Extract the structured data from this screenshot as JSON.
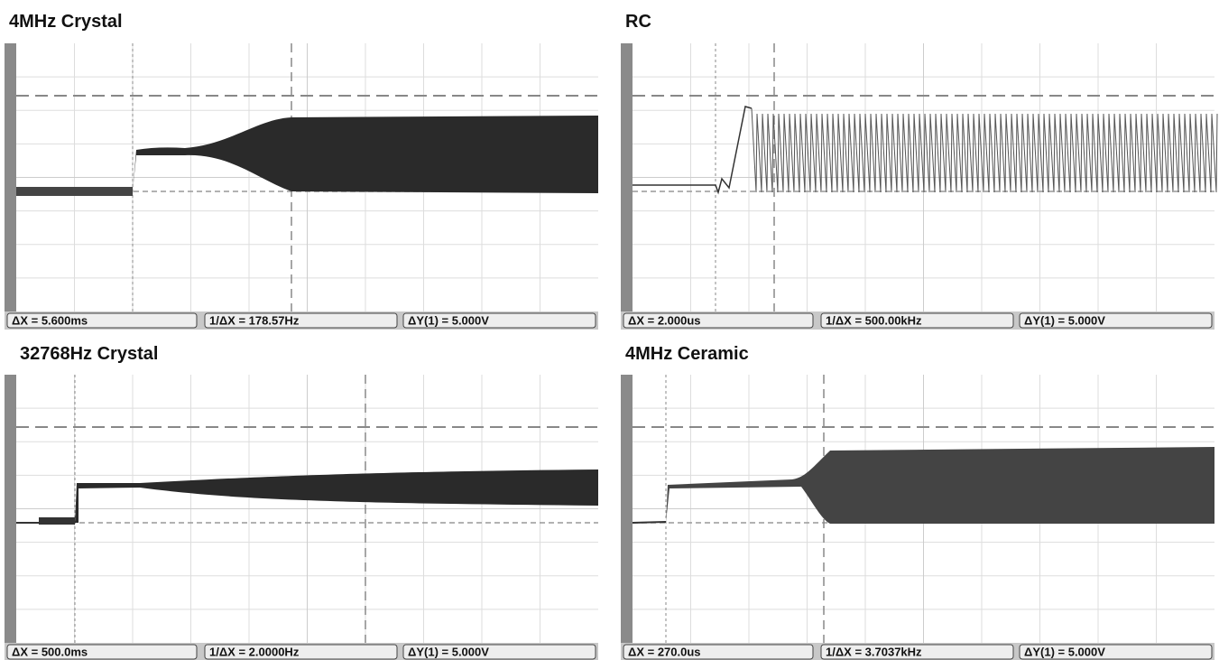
{
  "panels": [
    {
      "title": "4MHz Crystal",
      "measurements": [
        "ΔX = 5.600ms",
        "1/ΔX = 178.57Hz",
        "ΔY(1) = 5.000V"
      ]
    },
    {
      "title": "RC",
      "measurements": [
        "ΔX = 2.000us",
        "1/ΔX = 500.00kHz",
        "ΔY(1) = 5.000V"
      ]
    },
    {
      "title": "32768Hz Crystal",
      "measurements": [
        "ΔX = 500.0ms",
        "1/ΔX = 2.0000Hz",
        "ΔY(1) = 5.000V"
      ]
    },
    {
      "title": "4MHz Ceramic",
      "measurements": [
        "ΔX = 270.0us",
        "1/ΔX = 3.7037kHz",
        "ΔY(1) = 5.000V"
      ]
    }
  ]
}
